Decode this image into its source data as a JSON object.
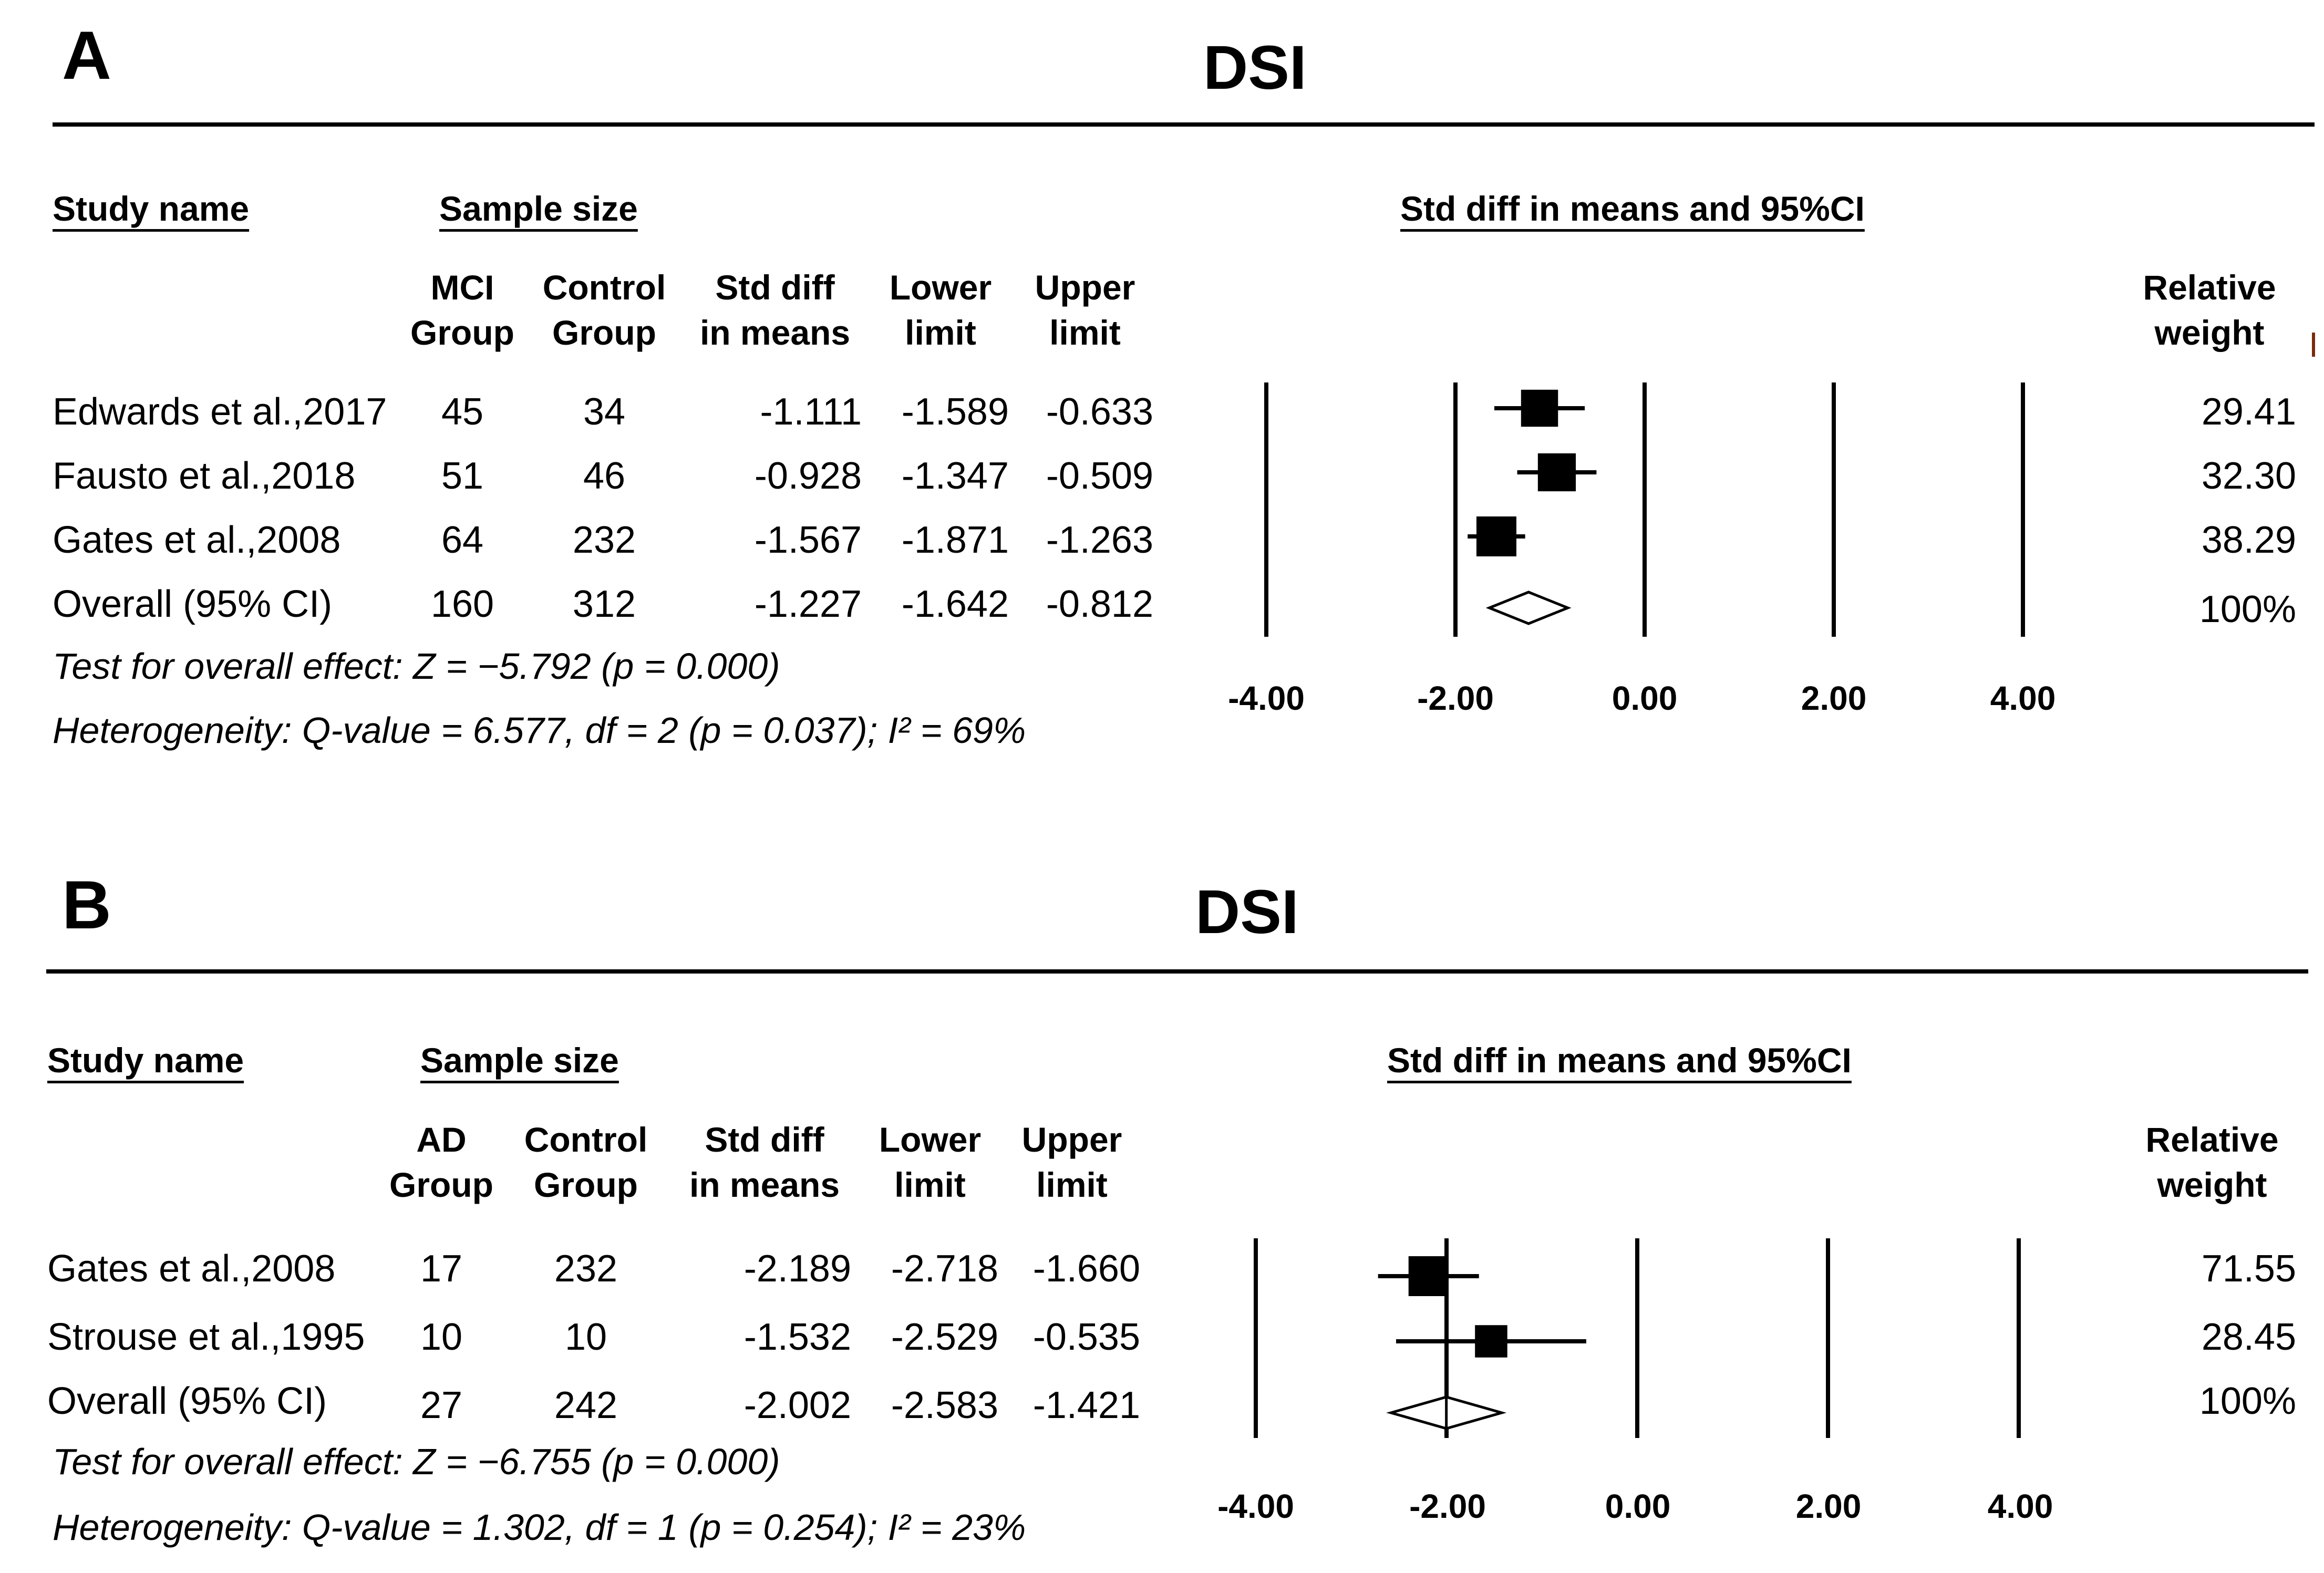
{
  "panels": [
    {
      "letter": "A",
      "title": "DSI",
      "headers": {
        "study_name": "Study name",
        "sample_size": "Sample size",
        "plot": "Std diff in means and 95%CI",
        "group1_a": "MCI",
        "group1_b": "Group",
        "group2_a": "Control",
        "group2_b": "Group",
        "std_a": "Std diff",
        "std_b": "in means",
        "lower_a": "Lower",
        "lower_b": "limit",
        "upper_a": "Upper",
        "upper_b": "limit",
        "weight_a": "Relative",
        "weight_b": "weight"
      },
      "rows": [
        {
          "study": "Edwards et al.,2017",
          "n1": "45",
          "n2": "34",
          "std": "-1.111",
          "lower": "-1.589",
          "upper": "-0.633",
          "weight": "29.41"
        },
        {
          "study": "Fausto et al.,2018",
          "n1": "51",
          "n2": "46",
          "std": "-0.928",
          "lower": "-1.347",
          "upper": "-0.509",
          "weight": "32.30"
        },
        {
          "study": "Gates et al.,2008",
          "n1": "64",
          "n2": "232",
          "std": "-1.567",
          "lower": "-1.871",
          "upper": "-1.263",
          "weight": "38.29"
        }
      ],
      "overall": {
        "study": "Overall (95% CI)",
        "n1": "160",
        "n2": "312",
        "std": "-1.227",
        "lower": "-1.642",
        "upper": "-0.812",
        "weight": "100%"
      },
      "test": "Test for overall effect: Z = −5.792 (p = 0.000)",
      "heterogeneity": "Heterogeneity: Q-value = 6.577, df = 2 (p = 0.037); I² = 69%",
      "ticks": [
        "-4.00",
        "-2.00",
        "0.00",
        "2.00",
        "4.00"
      ]
    },
    {
      "letter": "B",
      "title": "DSI",
      "headers": {
        "study_name": "Study name",
        "sample_size": "Sample size",
        "plot": "Std diff in means and 95%CI",
        "group1_a": "AD",
        "group1_b": "Group",
        "group2_a": "Control",
        "group2_b": "Group",
        "std_a": "Std diff",
        "std_b": "in means",
        "lower_a": "Lower",
        "lower_b": "limit",
        "upper_a": "Upper",
        "upper_b": "limit",
        "weight_a": "Relative",
        "weight_b": "weight"
      },
      "rows": [
        {
          "study": "Gates et al.,2008",
          "n1": "17",
          "n2": "232",
          "std": "-2.189",
          "lower": "-2.718",
          "upper": "-1.660",
          "weight": "71.55"
        },
        {
          "study": "Strouse et al.,1995",
          "n1": "10",
          "n2": "10",
          "std": "-1.532",
          "lower": "-2.529",
          "upper": "-0.535",
          "weight": "28.45"
        }
      ],
      "overall": {
        "study": "Overall (95% CI)",
        "n1": "27",
        "n2": "242",
        "std": "-2.002",
        "lower": "-2.583",
        "upper": "-1.421",
        "weight": "100%"
      },
      "test": "Test for overall effect: Z = −6.755 (p = 0.000)",
      "heterogeneity": "Heterogeneity: Q-value = 1.302, df = 1 (p = 0.254); I² = 23%",
      "ticks": [
        "-4.00",
        "-2.00",
        "0.00",
        "2.00",
        "4.00"
      ]
    }
  ],
  "chart_data": [
    {
      "type": "forest",
      "title": "DSI",
      "panel": "A",
      "xlabel": "Std diff in means and 95%CI",
      "xlim": [
        -4,
        4
      ],
      "xticks": [
        -4,
        -2,
        0,
        2,
        4
      ],
      "series": [
        {
          "name": "Edwards et al.,2017",
          "estimate": -1.111,
          "lower": -1.589,
          "upper": -0.633,
          "weight": 29.41
        },
        {
          "name": "Fausto et al.,2018",
          "estimate": -0.928,
          "lower": -1.347,
          "upper": -0.509,
          "weight": 32.3
        },
        {
          "name": "Gates et al.,2008",
          "estimate": -1.567,
          "lower": -1.871,
          "upper": -1.263,
          "weight": 38.29
        }
      ],
      "overall": {
        "name": "Overall (95% CI)",
        "estimate": -1.227,
        "lower": -1.642,
        "upper": -0.812,
        "weight": 100
      }
    },
    {
      "type": "forest",
      "title": "DSI",
      "panel": "B",
      "xlabel": "Std diff in means and 95%CI",
      "xlim": [
        -4,
        4
      ],
      "xticks": [
        -4,
        -2,
        0,
        2,
        4
      ],
      "series": [
        {
          "name": "Gates et al.,2008",
          "estimate": -2.189,
          "lower": -2.718,
          "upper": -1.66,
          "weight": 71.55
        },
        {
          "name": "Strouse et al.,1995",
          "estimate": -1.532,
          "lower": -2.529,
          "upper": -0.535,
          "weight": 28.45
        }
      ],
      "overall": {
        "name": "Overall (95% CI)",
        "estimate": -2.002,
        "lower": -2.583,
        "upper": -1.421,
        "weight": 100
      }
    }
  ]
}
